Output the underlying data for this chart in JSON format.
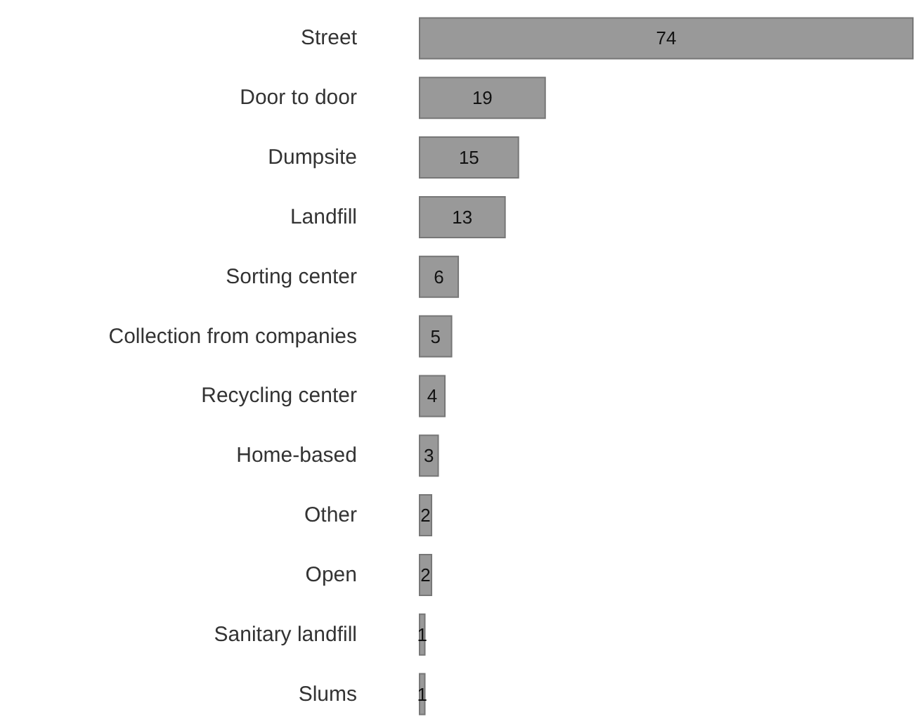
{
  "chart_data": {
    "type": "bar",
    "orientation": "horizontal",
    "categories": [
      "Street",
      "Door to door",
      "Dumpsite",
      "Landfill",
      "Sorting center",
      "Collection from companies",
      "Recycling center",
      "Home-based",
      "Other",
      "Open",
      "Sanitary landfill",
      "Slums"
    ],
    "values": [
      74,
      19,
      15,
      13,
      6,
      5,
      4,
      3,
      2,
      2,
      1,
      1
    ],
    "color": "#999999",
    "data_labels": true
  }
}
